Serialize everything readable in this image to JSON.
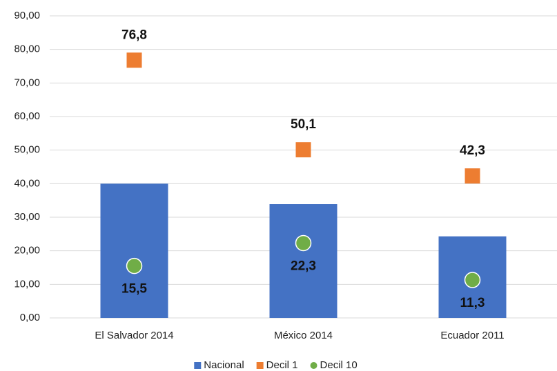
{
  "chart_data": {
    "type": "bar",
    "categories": [
      "El Salvador 2014",
      "México 2014",
      "Ecuador 2011"
    ],
    "series": [
      {
        "name": "Nacional",
        "color": "#4472c4",
        "values": [
          40.0,
          33.9,
          24.3
        ]
      },
      {
        "name": "Decil 1",
        "color": "#ed7d31",
        "marker": "square",
        "values": [
          76.8,
          50.1,
          42.3
        ],
        "value_labels": [
          "76,8",
          "50,1",
          "42,3"
        ]
      },
      {
        "name": "Decil 10",
        "color": "#70ad47",
        "marker": "circle",
        "values": [
          15.5,
          22.3,
          11.3
        ],
        "value_labels": [
          "15,5",
          "22,3",
          "11,3"
        ]
      }
    ],
    "ylim": [
      0,
      90
    ],
    "yticks": [
      {
        "value": 0,
        "label": "0,00"
      },
      {
        "value": 10,
        "label": "10,00"
      },
      {
        "value": 20,
        "label": "20,00"
      },
      {
        "value": 30,
        "label": "30,00"
      },
      {
        "value": 40,
        "label": "40,00"
      },
      {
        "value": 50,
        "label": "50,00"
      },
      {
        "value": 60,
        "label": "60,00"
      },
      {
        "value": 70,
        "label": "70,00"
      },
      {
        "value": 80,
        "label": "80,00"
      },
      {
        "value": 90,
        "label": "90,00"
      }
    ],
    "grid": true,
    "legend": "bottom"
  }
}
